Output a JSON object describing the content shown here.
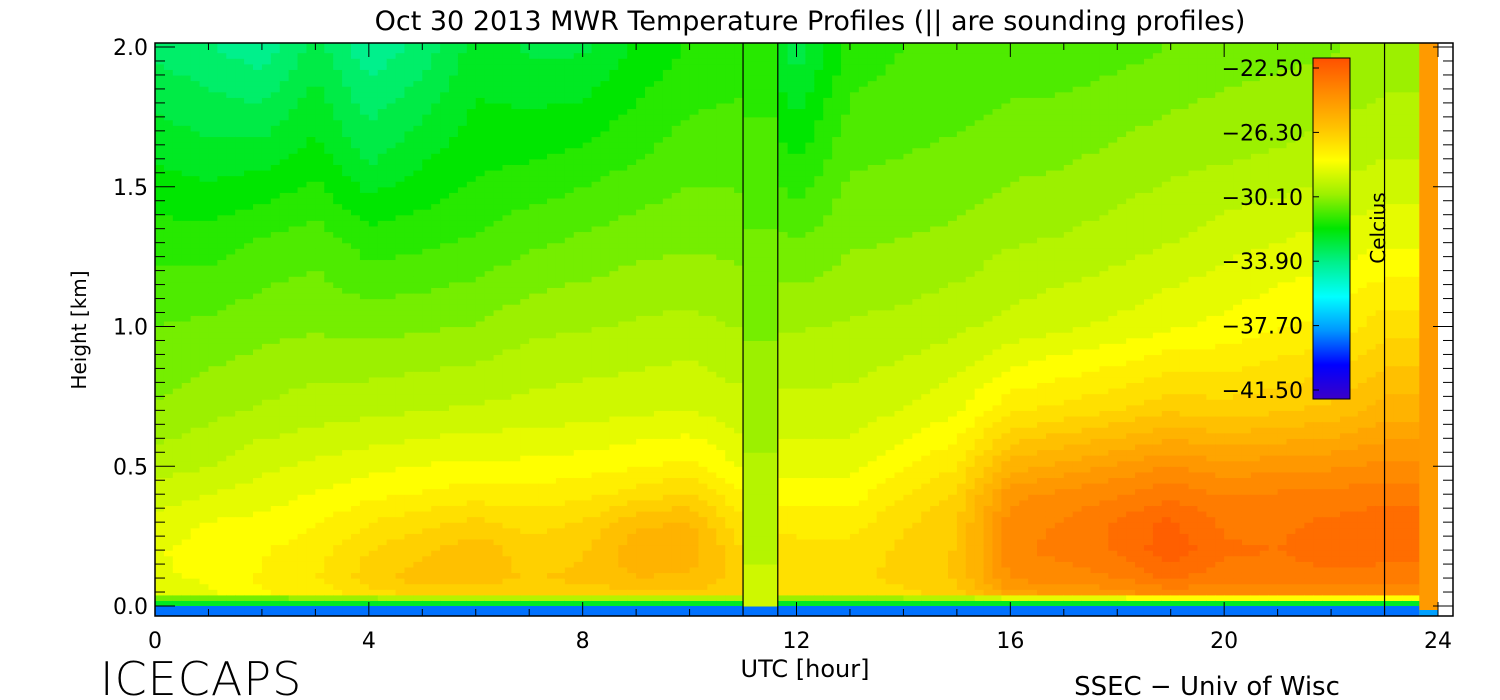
{
  "chart_data": {
    "type": "heatmap",
    "title": "Oct 30 2013 MWR Temperature Profiles (|| are sounding profiles)",
    "xlabel": "UTC [hour]",
    "ylabel": "Height [km]",
    "xlim": [
      0,
      24
    ],
    "ylim": [
      0,
      2
    ],
    "x_ticks": [
      0,
      4,
      8,
      12,
      16,
      20,
      24
    ],
    "x_tick_labels": [
      "0",
      "4",
      "8",
      "12",
      "16",
      "20",
      "24"
    ],
    "y_ticks": [
      0,
      0.5,
      1.0,
      1.5,
      2.0
    ],
    "y_tick_labels": [
      "0.0",
      "0.5",
      "1.0",
      "1.5",
      "2.0"
    ],
    "colorbar": {
      "label": "Celcius",
      "min": -41.5,
      "max": -22.5,
      "ticks": [
        -22.5,
        -26.3,
        -30.1,
        -33.9,
        -37.7,
        -41.5
      ],
      "tick_labels": [
        "−22.50",
        "−26.30",
        "−30.10",
        "−33.90",
        "−37.70",
        "−41.50"
      ],
      "colors": [
        "#3a00c8",
        "#0000ff",
        "#0096ff",
        "#00ffff",
        "#00f08c",
        "#00e600",
        "#9cf000",
        "#ffff00",
        "#ffc000",
        "#ff8a00",
        "#ff5000"
      ]
    },
    "sounding_times": [
      11.0,
      11.65,
      23.0
    ],
    "data_gaps": [
      [
        11.0,
        11.65
      ],
      [
        23.65,
        24.0
      ]
    ],
    "z_km": [
      0.0,
      0.05,
      0.1,
      0.2,
      0.3,
      0.4,
      0.5,
      0.7,
      1.0,
      1.3,
      1.6,
      2.0
    ],
    "profiles": [
      {
        "t": 0,
        "temps": [
          -34,
          -28.5,
          -28.5,
          -28.5,
          -28.8,
          -29.2,
          -29.6,
          -30.3,
          -30.8,
          -31.5,
          -32.3,
          -33.3
        ]
      },
      {
        "t": 1,
        "temps": [
          -34,
          -28.5,
          -28.4,
          -28.2,
          -28.4,
          -28.9,
          -29.4,
          -30.0,
          -30.7,
          -31.5,
          -32.5,
          -33.6
        ]
      },
      {
        "t": 2,
        "temps": [
          -34,
          -28.0,
          -27.9,
          -28.0,
          -28.3,
          -28.7,
          -29.0,
          -29.8,
          -30.5,
          -31.2,
          -32.4,
          -34.0
        ]
      },
      {
        "t": 3,
        "temps": [
          -34,
          -27.8,
          -27.5,
          -27.7,
          -28.0,
          -28.4,
          -28.8,
          -29.6,
          -30.4,
          -31.0,
          -32.0,
          -33.0
        ]
      },
      {
        "t": 4,
        "temps": [
          -34,
          -27.2,
          -26.8,
          -27.0,
          -27.5,
          -28.1,
          -28.6,
          -29.5,
          -30.5,
          -31.5,
          -32.8,
          -34.0
        ]
      },
      {
        "t": 5,
        "temps": [
          -34,
          -26.8,
          -26.3,
          -26.6,
          -27.2,
          -27.9,
          -28.4,
          -29.4,
          -30.4,
          -31.4,
          -32.3,
          -33.5
        ]
      },
      {
        "t": 6,
        "temps": [
          -34,
          -26.8,
          -26.3,
          -26.2,
          -26.9,
          -27.7,
          -28.3,
          -29.3,
          -30.3,
          -31.2,
          -31.9,
          -32.5
        ]
      },
      {
        "t": 7,
        "temps": [
          -34,
          -26.9,
          -26.6,
          -26.8,
          -27.2,
          -27.8,
          -28.3,
          -29.2,
          -30.0,
          -30.9,
          -31.8,
          -32.8
        ]
      },
      {
        "t": 8,
        "temps": [
          -34,
          -26.8,
          -26.4,
          -26.6,
          -27.0,
          -27.6,
          -28.2,
          -29.1,
          -29.9,
          -30.7,
          -31.6,
          -32.8
        ]
      },
      {
        "t": 9,
        "temps": [
          -34,
          -26.6,
          -26.1,
          -25.7,
          -26.2,
          -27.3,
          -28.0,
          -29.0,
          -29.8,
          -30.5,
          -31.3,
          -32.2
        ]
      },
      {
        "t": 10,
        "temps": [
          -34,
          -26.6,
          -26.1,
          -25.8,
          -26.0,
          -26.9,
          -27.8,
          -28.9,
          -29.7,
          -30.4,
          -31.0,
          -31.7
        ]
      },
      {
        "t": 11,
        "temps": [
          -34,
          -27.0,
          -26.8,
          -27.0,
          -27.4,
          -28.0,
          -28.5,
          -29.2,
          -29.9,
          -30.5,
          -31.0,
          -31.5
        ]
      },
      {
        "t": 12,
        "temps": [
          -34,
          -27.5,
          -27.2,
          -27.3,
          -27.7,
          -28.2,
          -28.6,
          -29.2,
          -29.9,
          -30.8,
          -31.8,
          -33.0
        ]
      },
      {
        "t": 13,
        "temps": [
          -34,
          -27.3,
          -27.1,
          -27.3,
          -27.7,
          -28.2,
          -28.6,
          -29.2,
          -29.8,
          -30.4,
          -30.9,
          -31.6
        ]
      },
      {
        "t": 14,
        "temps": [
          -34,
          -27.1,
          -26.9,
          -26.9,
          -27.1,
          -27.5,
          -28.0,
          -28.9,
          -29.7,
          -30.3,
          -30.8,
          -31.3
        ]
      },
      {
        "t": 15,
        "temps": [
          -34,
          -26.8,
          -26.5,
          -26.5,
          -26.6,
          -27.0,
          -27.5,
          -28.5,
          -29.5,
          -30.2,
          -30.7,
          -31.2
        ]
      },
      {
        "t": 16,
        "temps": [
          -34,
          -25.2,
          -24.6,
          -24.3,
          -24.4,
          -24.8,
          -25.8,
          -27.6,
          -29.2,
          -29.9,
          -30.5,
          -31.1
        ]
      },
      {
        "t": 17,
        "temps": [
          -34,
          -25.0,
          -24.4,
          -24.0,
          -24.1,
          -24.5,
          -25.4,
          -27.3,
          -29.0,
          -29.8,
          -30.4,
          -31.1
        ]
      },
      {
        "t": 18,
        "temps": [
          -34,
          -24.8,
          -24.2,
          -23.6,
          -23.6,
          -24.2,
          -25.0,
          -27.0,
          -28.8,
          -29.6,
          -30.2,
          -31.0
        ]
      },
      {
        "t": 19,
        "temps": [
          -34,
          -24.4,
          -23.6,
          -22.9,
          -23.1,
          -23.8,
          -24.6,
          -26.6,
          -28.5,
          -29.4,
          -30.0,
          -30.8
        ]
      },
      {
        "t": 20,
        "temps": [
          -34,
          -24.6,
          -24.0,
          -23.6,
          -23.8,
          -24.2,
          -24.9,
          -26.8,
          -28.3,
          -29.1,
          -29.9,
          -30.6
        ]
      },
      {
        "t": 21,
        "temps": [
          -34,
          -24.5,
          -23.9,
          -23.7,
          -23.8,
          -24.1,
          -24.8,
          -26.6,
          -28.0,
          -28.9,
          -29.8,
          -30.5
        ]
      },
      {
        "t": 22,
        "temps": [
          -34,
          -24.5,
          -23.9,
          -23.4,
          -23.6,
          -24.0,
          -24.7,
          -26.4,
          -27.8,
          -28.7,
          -29.6,
          -30.4
        ]
      },
      {
        "t": 23,
        "temps": [
          -34,
          -24.6,
          -24.0,
          -23.4,
          -23.4,
          -23.9,
          -24.5,
          -25.8,
          -27.2,
          -28.5,
          -29.4,
          -30.2
        ]
      }
    ]
  },
  "footer": {
    "left_label": "ICECAPS",
    "right_label": "SSEC − Univ of Wisc"
  }
}
